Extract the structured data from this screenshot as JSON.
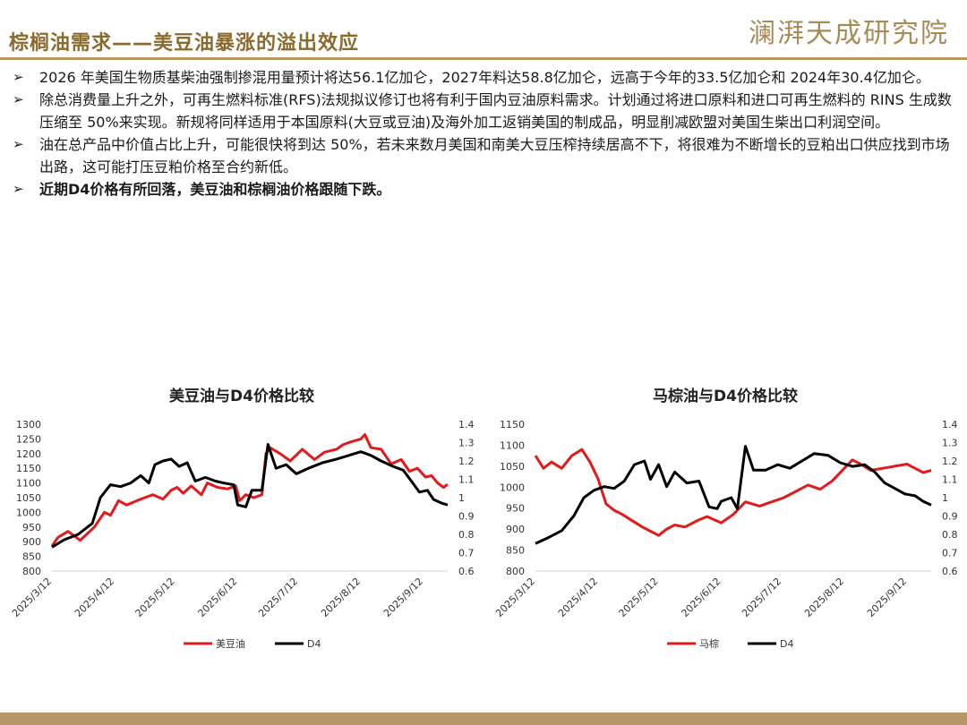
{
  "page": {
    "title": "棕榈油需求——美豆油暴涨的溢出效应",
    "logo": "澜湃天成研究院"
  },
  "bullets": [
    {
      "text": "2026 年美国生物质基柴油强制掺混用量预计将达56.1亿加仑，2027年料达58.8亿加仑，远高于今年的33.5亿加仑和 2024年30.4亿加仑。",
      "bold": false
    },
    {
      "text": "除总消费量上升之外，可再生燃料标准(RFS)法规拟议修订也将有利于国内豆油原料需求。计划通过将进口原料和进口可再生燃料的 RINS 生成数压缩至 50%来实现。新规将同样适用于本国原料(大豆或豆油)及海外加工返销美国的制成品，明显削减欧盟对美国生柴出口利润空间。",
      "bold": false
    },
    {
      "text": "油在总产品中价值占比上升，可能很快将到达 50%，若未来数月美国和南美大豆压榨持续居高不下，将很难为不断增长的豆粕出口供应找到市场出路，这可能打压豆粕价格至合约新低。",
      "bold": false
    },
    {
      "text": "近期D4价格有所回落，美豆油和棕榈油价格跟随下跌。",
      "bold": true
    }
  ],
  "bullet_marker": "➢",
  "chart_data": [
    {
      "type": "line",
      "title": "美豆油与D4价格比较",
      "x_ticks": [
        "2025/3/12",
        "2025/4/12",
        "2025/5/12",
        "2025/6/12",
        "2025/7/12",
        "2025/8/12",
        "2025/9/12"
      ],
      "x_range": [
        "2025-03-12",
        "2025-09-24"
      ],
      "y_left": {
        "min": 800,
        "max": 1300,
        "step": 50
      },
      "y_right": {
        "min": 0.6,
        "max": 1.4,
        "step": 0.1
      },
      "legend_position": "bottom",
      "series": [
        {
          "name": "美豆油",
          "axis": "left",
          "color": "#e31a1c",
          "points": [
            [
              "2025-03-12",
              885
            ],
            [
              "2025-03-15",
              915
            ],
            [
              "2025-03-20",
              935
            ],
            [
              "2025-03-26",
              905
            ],
            [
              "2025-04-02",
              950
            ],
            [
              "2025-04-07",
              1000
            ],
            [
              "2025-04-10",
              990
            ],
            [
              "2025-04-14",
              1040
            ],
            [
              "2025-04-18",
              1025
            ],
            [
              "2025-04-25",
              1045
            ],
            [
              "2025-05-01",
              1060
            ],
            [
              "2025-05-06",
              1045
            ],
            [
              "2025-05-10",
              1075
            ],
            [
              "2025-05-13",
              1085
            ],
            [
              "2025-05-16",
              1065
            ],
            [
              "2025-05-20",
              1090
            ],
            [
              "2025-05-25",
              1060
            ],
            [
              "2025-05-28",
              1100
            ],
            [
              "2025-06-02",
              1085
            ],
            [
              "2025-06-07",
              1080
            ],
            [
              "2025-06-11",
              1090
            ],
            [
              "2025-06-13",
              1040
            ],
            [
              "2025-06-16",
              1060
            ],
            [
              "2025-06-20",
              1050
            ],
            [
              "2025-06-24",
              1060
            ],
            [
              "2025-06-26",
              1200
            ],
            [
              "2025-06-28",
              1220
            ],
            [
              "2025-07-03",
              1200
            ],
            [
              "2025-07-08",
              1175
            ],
            [
              "2025-07-14",
              1215
            ],
            [
              "2025-07-20",
              1180
            ],
            [
              "2025-07-25",
              1205
            ],
            [
              "2025-07-31",
              1215
            ],
            [
              "2025-08-03",
              1230
            ],
            [
              "2025-08-07",
              1240
            ],
            [
              "2025-08-12",
              1250
            ],
            [
              "2025-08-14",
              1265
            ],
            [
              "2025-08-17",
              1220
            ],
            [
              "2025-08-22",
              1215
            ],
            [
              "2025-08-27",
              1165
            ],
            [
              "2025-09-01",
              1180
            ],
            [
              "2025-09-05",
              1140
            ],
            [
              "2025-09-09",
              1150
            ],
            [
              "2025-09-13",
              1120
            ],
            [
              "2025-09-16",
              1125
            ],
            [
              "2025-09-19",
              1100
            ],
            [
              "2025-09-22",
              1085
            ],
            [
              "2025-09-24",
              1095
            ]
          ]
        },
        {
          "name": "D4",
          "axis": "right",
          "color": "#000000",
          "points": [
            [
              "2025-03-12",
              0.73
            ],
            [
              "2025-03-18",
              0.77
            ],
            [
              "2025-03-25",
              0.8
            ],
            [
              "2025-04-01",
              0.86
            ],
            [
              "2025-04-05",
              1.0
            ],
            [
              "2025-04-10",
              1.07
            ],
            [
              "2025-04-15",
              1.06
            ],
            [
              "2025-04-20",
              1.08
            ],
            [
              "2025-04-25",
              1.12
            ],
            [
              "2025-04-29",
              1.08
            ],
            [
              "2025-05-02",
              1.18
            ],
            [
              "2025-05-06",
              1.2
            ],
            [
              "2025-05-10",
              1.21
            ],
            [
              "2025-05-14",
              1.17
            ],
            [
              "2025-05-18",
              1.19
            ],
            [
              "2025-05-22",
              1.09
            ],
            [
              "2025-05-27",
              1.11
            ],
            [
              "2025-06-01",
              1.09
            ],
            [
              "2025-06-05",
              1.08
            ],
            [
              "2025-06-10",
              1.07
            ],
            [
              "2025-06-12",
              0.96
            ],
            [
              "2025-06-16",
              0.95
            ],
            [
              "2025-06-19",
              1.04
            ],
            [
              "2025-06-24",
              1.04
            ],
            [
              "2025-06-27",
              1.29
            ],
            [
              "2025-07-01",
              1.16
            ],
            [
              "2025-07-06",
              1.18
            ],
            [
              "2025-07-11",
              1.13
            ],
            [
              "2025-07-17",
              1.16
            ],
            [
              "2025-07-24",
              1.19
            ],
            [
              "2025-07-31",
              1.21
            ],
            [
              "2025-08-06",
              1.23
            ],
            [
              "2025-08-12",
              1.25
            ],
            [
              "2025-08-17",
              1.23
            ],
            [
              "2025-08-22",
              1.2
            ],
            [
              "2025-08-28",
              1.17
            ],
            [
              "2025-09-02",
              1.15
            ],
            [
              "2025-09-06",
              1.09
            ],
            [
              "2025-09-10",
              1.03
            ],
            [
              "2025-09-14",
              1.04
            ],
            [
              "2025-09-17",
              0.99
            ],
            [
              "2025-09-21",
              0.97
            ],
            [
              "2025-09-24",
              0.96
            ]
          ]
        }
      ]
    },
    {
      "type": "line",
      "title": "马棕油与D4价格比较",
      "x_ticks": [
        "2025/3/12",
        "2025/4/12",
        "2025/5/12",
        "2025/6/12",
        "2025/7/12",
        "2025/8/12",
        "2025/9/12"
      ],
      "x_range": [
        "2025-03-12",
        "2025-09-24"
      ],
      "y_left": {
        "min": 800,
        "max": 1150,
        "step": 50
      },
      "y_right": {
        "min": 0.6,
        "max": 1.4,
        "step": 0.1
      },
      "legend_position": "bottom",
      "series": [
        {
          "name": "马棕",
          "axis": "left",
          "color": "#e31a1c",
          "points": [
            [
              "2025-03-12",
              1075
            ],
            [
              "2025-03-16",
              1045
            ],
            [
              "2025-03-20",
              1060
            ],
            [
              "2025-03-25",
              1045
            ],
            [
              "2025-03-30",
              1075
            ],
            [
              "2025-04-04",
              1090
            ],
            [
              "2025-04-08",
              1060
            ],
            [
              "2025-04-12",
              1020
            ],
            [
              "2025-04-16",
              960
            ],
            [
              "2025-04-20",
              945
            ],
            [
              "2025-04-24",
              935
            ],
            [
              "2025-04-29",
              920
            ],
            [
              "2025-05-04",
              905
            ],
            [
              "2025-05-08",
              895
            ],
            [
              "2025-05-12",
              885
            ],
            [
              "2025-05-16",
              900
            ],
            [
              "2025-05-20",
              910
            ],
            [
              "2025-05-25",
              905
            ],
            [
              "2025-05-31",
              920
            ],
            [
              "2025-06-05",
              930
            ],
            [
              "2025-06-12",
              915
            ],
            [
              "2025-06-18",
              935
            ],
            [
              "2025-06-24",
              965
            ],
            [
              "2025-07-01",
              955
            ],
            [
              "2025-07-07",
              965
            ],
            [
              "2025-07-13",
              975
            ],
            [
              "2025-07-19",
              990
            ],
            [
              "2025-07-25",
              1005
            ],
            [
              "2025-07-31",
              995
            ],
            [
              "2025-08-06",
              1015
            ],
            [
              "2025-08-12",
              1045
            ],
            [
              "2025-08-16",
              1065
            ],
            [
              "2025-08-20",
              1055
            ],
            [
              "2025-08-25",
              1040
            ],
            [
              "2025-08-31",
              1045
            ],
            [
              "2025-09-06",
              1050
            ],
            [
              "2025-09-12",
              1055
            ],
            [
              "2025-09-16",
              1045
            ],
            [
              "2025-09-20",
              1035
            ],
            [
              "2025-09-24",
              1040
            ]
          ]
        },
        {
          "name": "D4",
          "axis": "right",
          "color": "#000000",
          "points": [
            [
              "2025-03-12",
              0.75
            ],
            [
              "2025-03-18",
              0.78
            ],
            [
              "2025-03-25",
              0.82
            ],
            [
              "2025-03-31",
              0.9
            ],
            [
              "2025-04-05",
              1.0
            ],
            [
              "2025-04-10",
              1.04
            ],
            [
              "2025-04-15",
              1.06
            ],
            [
              "2025-04-20",
              1.05
            ],
            [
              "2025-04-25",
              1.09
            ],
            [
              "2025-04-30",
              1.18
            ],
            [
              "2025-05-05",
              1.2
            ],
            [
              "2025-05-08",
              1.1
            ],
            [
              "2025-05-12",
              1.18
            ],
            [
              "2025-05-16",
              1.06
            ],
            [
              "2025-05-20",
              1.14
            ],
            [
              "2025-05-26",
              1.08
            ],
            [
              "2025-06-01",
              1.09
            ],
            [
              "2025-06-06",
              0.95
            ],
            [
              "2025-06-10",
              0.94
            ],
            [
              "2025-06-12",
              0.98
            ],
            [
              "2025-06-17",
              1.0
            ],
            [
              "2025-06-20",
              0.94
            ],
            [
              "2025-06-24",
              1.28
            ],
            [
              "2025-06-28",
              1.15
            ],
            [
              "2025-07-04",
              1.15
            ],
            [
              "2025-07-10",
              1.18
            ],
            [
              "2025-07-16",
              1.16
            ],
            [
              "2025-07-22",
              1.2
            ],
            [
              "2025-07-28",
              1.24
            ],
            [
              "2025-08-04",
              1.23
            ],
            [
              "2025-08-10",
              1.19
            ],
            [
              "2025-08-16",
              1.17
            ],
            [
              "2025-08-22",
              1.18
            ],
            [
              "2025-08-27",
              1.14
            ],
            [
              "2025-09-01",
              1.08
            ],
            [
              "2025-09-06",
              1.05
            ],
            [
              "2025-09-11",
              1.02
            ],
            [
              "2025-09-16",
              1.01
            ],
            [
              "2025-09-20",
              0.98
            ],
            [
              "2025-09-24",
              0.96
            ]
          ]
        }
      ]
    }
  ]
}
